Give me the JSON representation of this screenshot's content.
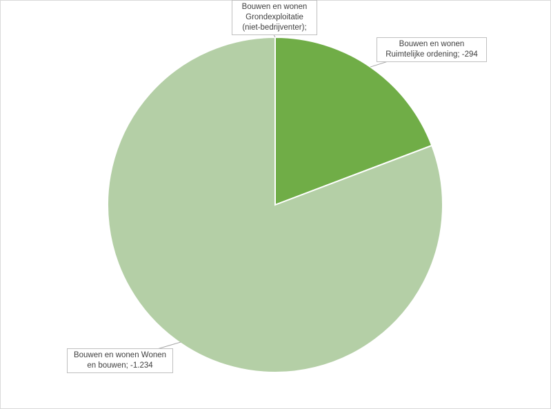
{
  "chart_data": {
    "type": "pie",
    "slices": [
      {
        "label": "Bouwen en wonen Grondexploitatie (niet-bedrijventer)",
        "value": 0,
        "display": "Bouwen en wonen Grondexploitatie (niet-bedrijventer);",
        "color": "#4f7f2a"
      },
      {
        "label": "Bouwen en wonen Ruimtelijke ordening",
        "value": -294,
        "display": "Bouwen en wonen Ruimtelijke ordening; -294",
        "color": "#70ad47"
      },
      {
        "label": "Bouwen en wonen Wonen en bouwen",
        "value": -1234,
        "display": "Bouwen en wonen Wonen en bouwen; -1.234",
        "color": "#b4cfa6"
      }
    ]
  }
}
